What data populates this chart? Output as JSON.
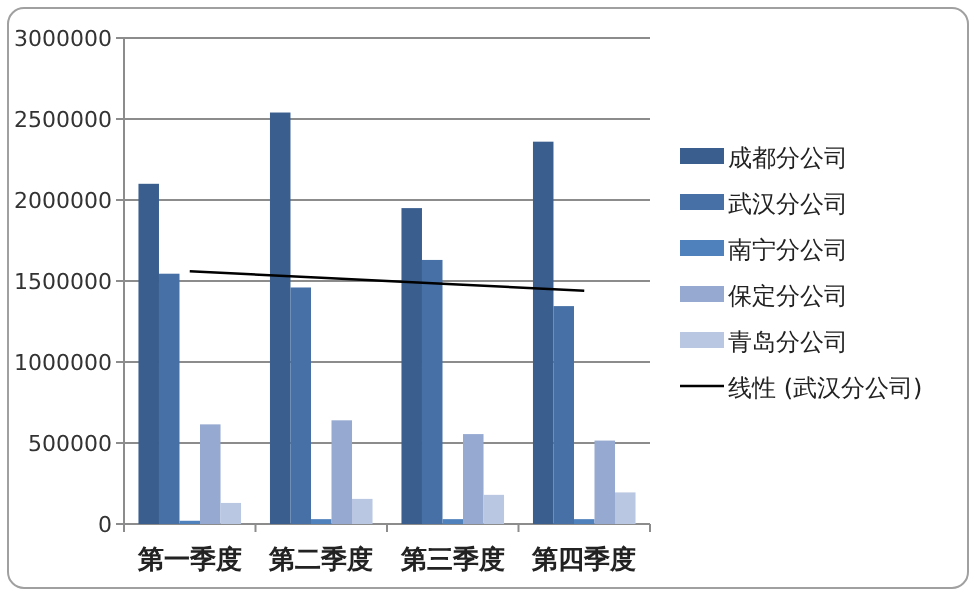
{
  "chart_data": {
    "type": "bar",
    "categories": [
      "第一季度",
      "第二季度",
      "第三季度",
      "第四季度"
    ],
    "series": [
      {
        "name": "成都分公司",
        "color": "#3a5f8f",
        "values": [
          2100000,
          2540000,
          1950000,
          2360000
        ]
      },
      {
        "name": "武汉分公司",
        "color": "#4670a6",
        "values": [
          1545000,
          1460000,
          1630000,
          1345000
        ]
      },
      {
        "name": "南宁分公司",
        "color": "#4f81bd",
        "values": [
          20000,
          30000,
          30000,
          30000
        ]
      },
      {
        "name": "保定分公司",
        "color": "#95a9d1",
        "values": [
          615000,
          640000,
          555000,
          515000
        ]
      },
      {
        "name": "青岛分公司",
        "color": "#bac7e2",
        "values": [
          130000,
          155000,
          180000,
          195000
        ]
      },
      {
        "name": "线性 (武汉分公司)",
        "color": "#000000",
        "type": "line",
        "values": [
          1560000,
          1520000,
          1480000,
          1440000
        ]
      }
    ],
    "ylim": [
      0,
      3000000
    ],
    "yticks": [
      0,
      500000,
      1000000,
      1500000,
      2000000,
      2500000,
      3000000
    ],
    "grid": "y",
    "legend": "right"
  }
}
